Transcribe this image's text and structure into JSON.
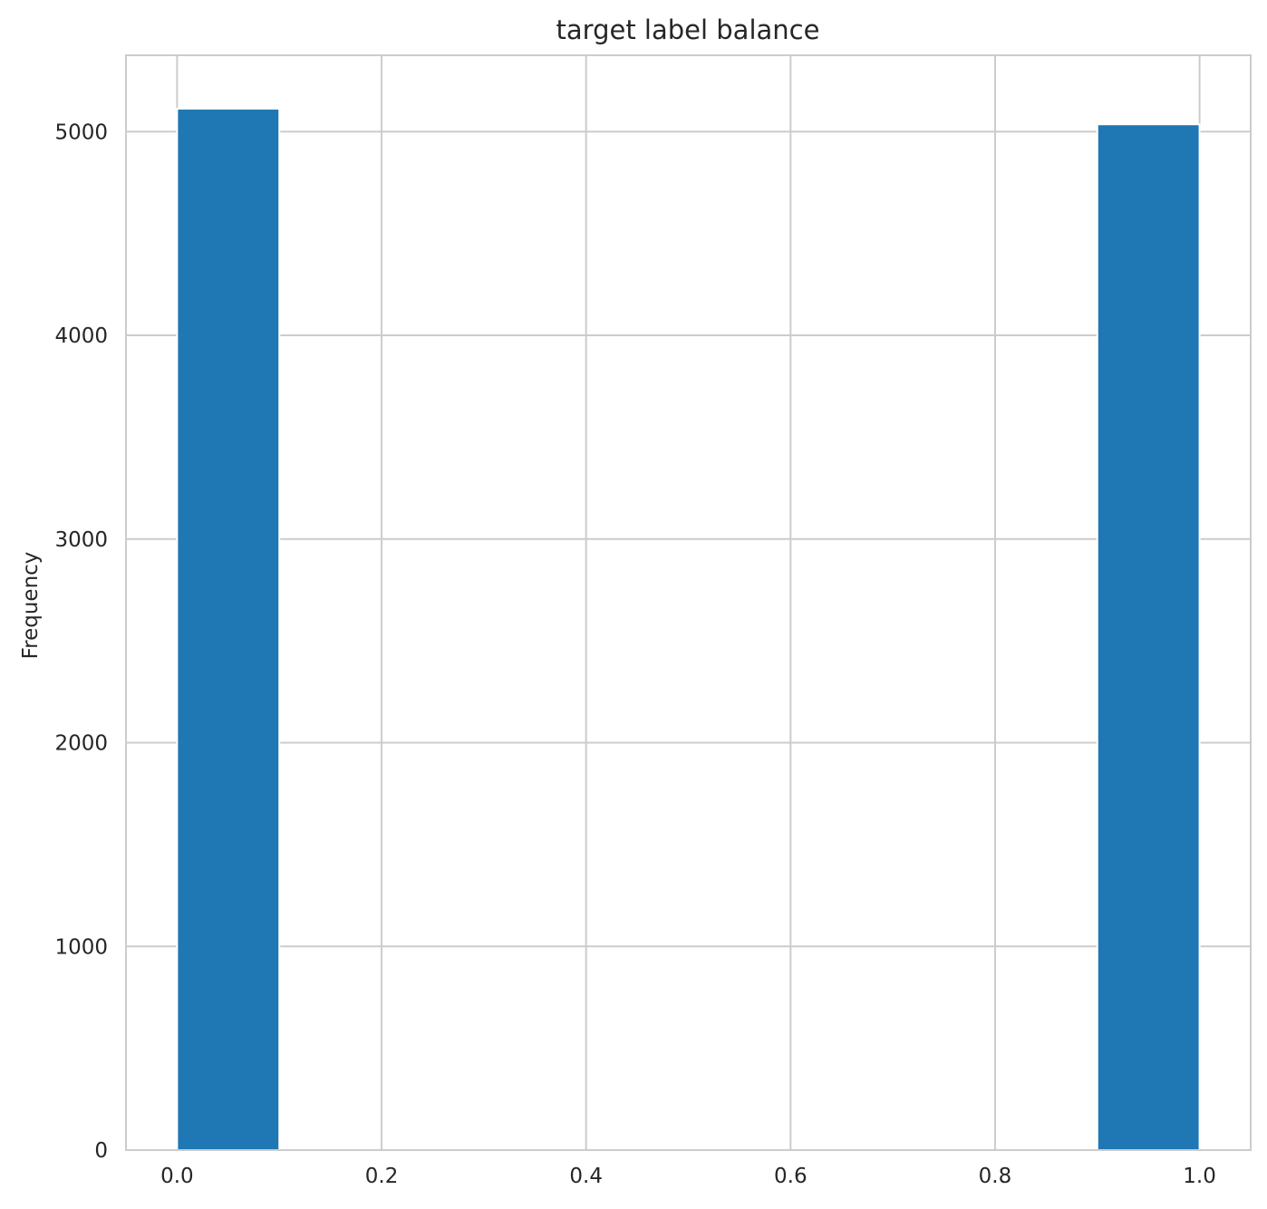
{
  "chart_data": {
    "type": "bar",
    "title": "target label balance",
    "xlabel": "",
    "ylabel": "Frequency",
    "xlim": [
      -0.05,
      1.05
    ],
    "ylim": [
      0,
      5375
    ],
    "xticks": [
      0.0,
      0.2,
      0.4,
      0.6,
      0.8,
      1.0
    ],
    "xtick_labels": [
      "0.0",
      "0.2",
      "0.4",
      "0.6",
      "0.8",
      "1.0"
    ],
    "yticks": [
      0,
      1000,
      2000,
      3000,
      4000,
      5000
    ],
    "ytick_labels": [
      "0",
      "1000",
      "2000",
      "3000",
      "4000",
      "5000"
    ],
    "bins": [
      {
        "x0": 0.0,
        "x1": 0.1,
        "value": 5113
      },
      {
        "x0": 0.9,
        "x1": 1.0,
        "value": 5036
      }
    ],
    "grid": true,
    "colors": {
      "bar": "#1f77b4",
      "grid": "#cccccc",
      "spine": "#cccccc",
      "text": "#262626"
    }
  }
}
